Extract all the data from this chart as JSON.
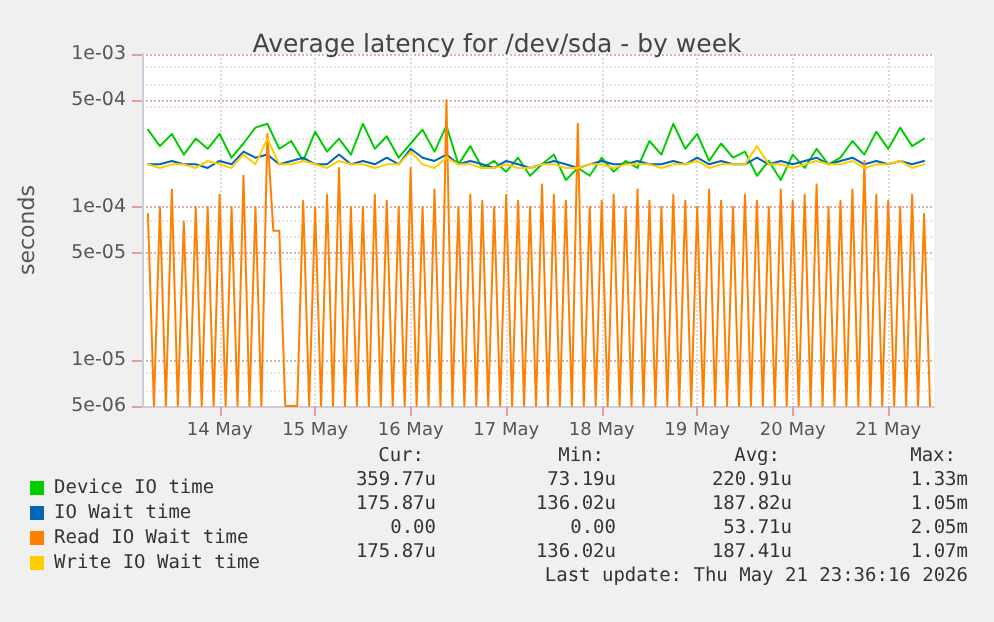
{
  "chart_data": {
    "type": "line",
    "title": "Average latency for /dev/sda - by week",
    "ylabel": "seconds",
    "log": "y",
    "grid": true,
    "legend": "bottom left",
    "marker": "none",
    "line_style": "solid",
    "ylim": [
      5e-06,
      0.001
    ],
    "yticks": [
      {
        "value": 0.001,
        "label": "1e-03"
      },
      {
        "value": 0.0005,
        "label": "5e-04"
      },
      {
        "value": 0.0001,
        "label": "1e-04"
      },
      {
        "value": 5e-05,
        "label": "5e-05"
      },
      {
        "value": 1e-05,
        "label": "1e-05"
      },
      {
        "value": 5e-06,
        "label": "5e-06"
      }
    ],
    "xlim": [
      "2026-05-13T16:30",
      "2026-05-21T23:30"
    ],
    "xticks": [
      {
        "value": "2026-05-14T12:00",
        "label": "14 May"
      },
      {
        "value": "2026-05-15T12:00",
        "label": "15 May"
      },
      {
        "value": "2026-05-16T12:00",
        "label": "16 May"
      },
      {
        "value": "2026-05-17T12:00",
        "label": "17 May"
      },
      {
        "value": "2026-05-18T12:00",
        "label": "18 May"
      },
      {
        "value": "2026-05-19T12:00",
        "label": "19 May"
      },
      {
        "value": "2026-05-20T12:00",
        "label": "20 May"
      },
      {
        "value": "2026-05-21T12:00",
        "label": "21 May"
      }
    ],
    "x": [
      "2026-05-13T18:00",
      "2026-05-13T21:00",
      "2026-05-14T00:00",
      "2026-05-14T03:00",
      "2026-05-14T06:00",
      "2026-05-14T09:00",
      "2026-05-14T12:00",
      "2026-05-14T15:00",
      "2026-05-14T18:00",
      "2026-05-14T21:00",
      "2026-05-15T00:00",
      "2026-05-15T03:00",
      "2026-05-15T06:00",
      "2026-05-15T09:00",
      "2026-05-15T12:00",
      "2026-05-15T15:00",
      "2026-05-15T18:00",
      "2026-05-15T21:00",
      "2026-05-16T00:00",
      "2026-05-16T03:00",
      "2026-05-16T06:00",
      "2026-05-16T09:00",
      "2026-05-16T12:00",
      "2026-05-16T15:00",
      "2026-05-16T18:00",
      "2026-05-16T21:00",
      "2026-05-17T00:00",
      "2026-05-17T03:00",
      "2026-05-17T06:00",
      "2026-05-17T09:00",
      "2026-05-17T12:00",
      "2026-05-17T15:00",
      "2026-05-17T18:00",
      "2026-05-17T21:00",
      "2026-05-18T00:00",
      "2026-05-18T03:00",
      "2026-05-18T06:00",
      "2026-05-18T09:00",
      "2026-05-18T12:00",
      "2026-05-18T15:00",
      "2026-05-18T18:00",
      "2026-05-18T21:00",
      "2026-05-19T00:00",
      "2026-05-19T03:00",
      "2026-05-19T06:00",
      "2026-05-19T09:00",
      "2026-05-19T12:00",
      "2026-05-19T15:00",
      "2026-05-19T18:00",
      "2026-05-19T21:00",
      "2026-05-20T00:00",
      "2026-05-20T03:00",
      "2026-05-20T06:00",
      "2026-05-20T09:00",
      "2026-05-20T12:00",
      "2026-05-20T15:00",
      "2026-05-20T18:00",
      "2026-05-20T21:00",
      "2026-05-21T00:00",
      "2026-05-21T03:00",
      "2026-05-21T06:00",
      "2026-05-21T09:00",
      "2026-05-21T12:00",
      "2026-05-21T15:00",
      "2026-05-21T18:00",
      "2026-05-21T21:00"
    ],
    "series": [
      {
        "name": "Device IO time",
        "color": "#00cc00",
        "values": [
          0.00032,
          0.00025,
          0.0003,
          0.00022,
          0.00028,
          0.00024,
          0.0003,
          0.00021,
          0.00026,
          0.00033,
          0.00035,
          0.00024,
          0.00027,
          0.0002,
          0.00031,
          0.00023,
          0.00028,
          0.00022,
          0.00035,
          0.00024,
          0.00029,
          0.00021,
          0.00026,
          0.00032,
          0.00023,
          0.00034,
          0.00019,
          0.00025,
          0.00018,
          0.0002,
          0.00017,
          0.00021,
          0.00016,
          0.00019,
          0.00022,
          0.00015,
          0.00018,
          0.00016,
          0.00021,
          0.00017,
          0.0002,
          0.00018,
          0.00027,
          0.00022,
          0.00035,
          0.00024,
          0.0003,
          0.0002,
          0.00026,
          0.00021,
          0.00023,
          0.00016,
          0.0002,
          0.00015,
          0.00022,
          0.00018,
          0.00024,
          0.00019,
          0.00021,
          0.00027,
          0.00022,
          0.00031,
          0.00024,
          0.00033,
          0.00025,
          0.00028
        ]
      },
      {
        "name": "IO Wait time",
        "color": "#0066b3",
        "values": [
          0.00019,
          0.00019,
          0.0002,
          0.00019,
          0.00019,
          0.00018,
          0.0002,
          0.00019,
          0.00023,
          0.00021,
          0.00022,
          0.00019,
          0.0002,
          0.00021,
          0.00019,
          0.00019,
          0.00022,
          0.00019,
          0.0002,
          0.00019,
          0.00021,
          0.00019,
          0.00024,
          0.00021,
          0.0002,
          0.00022,
          0.00019,
          0.0002,
          0.00019,
          0.00018,
          0.0002,
          0.00019,
          0.00018,
          0.00019,
          0.0002,
          0.00019,
          0.00018,
          0.00019,
          0.0002,
          0.00019,
          0.00019,
          0.0002,
          0.00019,
          0.00019,
          0.0002,
          0.00019,
          0.00021,
          0.00019,
          0.0002,
          0.00019,
          0.00019,
          0.00021,
          0.00019,
          0.0002,
          0.00019,
          0.0002,
          0.00021,
          0.00019,
          0.0002,
          0.00021,
          0.00019,
          0.0002,
          0.00019,
          0.0002,
          0.00019,
          0.0002
        ]
      },
      {
        "name": "Read IO Wait time",
        "color": "#ff8000",
        "x": [
          "2026-05-13T18:00",
          "2026-05-13T19:30",
          "2026-05-13T21:00",
          "2026-05-13T22:30",
          "2026-05-14T00:00",
          "2026-05-14T01:30",
          "2026-05-14T03:00",
          "2026-05-14T04:30",
          "2026-05-14T06:00",
          "2026-05-14T07:30",
          "2026-05-14T09:00",
          "2026-05-14T10:30",
          "2026-05-14T12:00",
          "2026-05-14T13:30",
          "2026-05-14T15:00",
          "2026-05-14T16:30",
          "2026-05-14T18:00",
          "2026-05-14T19:30",
          "2026-05-14T21:00",
          "2026-05-14T22:30",
          "2026-05-15T00:00",
          "2026-05-15T01:30",
          "2026-05-15T03:00",
          "2026-05-15T04:30",
          "2026-05-15T06:00",
          "2026-05-15T07:30",
          "2026-05-15T09:00",
          "2026-05-15T10:30",
          "2026-05-15T12:00",
          "2026-05-15T13:30",
          "2026-05-15T15:00",
          "2026-05-15T16:30",
          "2026-05-15T18:00",
          "2026-05-15T19:30",
          "2026-05-15T21:00",
          "2026-05-15T22:30",
          "2026-05-16T00:00",
          "2026-05-16T01:30",
          "2026-05-16T03:00",
          "2026-05-16T04:30",
          "2026-05-16T06:00",
          "2026-05-16T07:30",
          "2026-05-16T09:00",
          "2026-05-16T10:30",
          "2026-05-16T12:00",
          "2026-05-16T13:30",
          "2026-05-16T15:00",
          "2026-05-16T16:30",
          "2026-05-16T18:00",
          "2026-05-16T19:30",
          "2026-05-16T21:00",
          "2026-05-16T22:30",
          "2026-05-17T00:00",
          "2026-05-17T01:30",
          "2026-05-17T03:00",
          "2026-05-17T04:30",
          "2026-05-17T06:00",
          "2026-05-17T07:30",
          "2026-05-17T09:00",
          "2026-05-17T10:30",
          "2026-05-17T12:00",
          "2026-05-17T13:30",
          "2026-05-17T15:00",
          "2026-05-17T16:30",
          "2026-05-17T18:00",
          "2026-05-17T19:30",
          "2026-05-17T21:00",
          "2026-05-17T22:30",
          "2026-05-18T00:00",
          "2026-05-18T01:30",
          "2026-05-18T03:00",
          "2026-05-18T04:30",
          "2026-05-18T06:00",
          "2026-05-18T07:30",
          "2026-05-18T09:00",
          "2026-05-18T10:30",
          "2026-05-18T12:00",
          "2026-05-18T13:30",
          "2026-05-18T15:00",
          "2026-05-18T16:30",
          "2026-05-18T18:00",
          "2026-05-18T19:30",
          "2026-05-18T21:00",
          "2026-05-18T22:30",
          "2026-05-19T00:00",
          "2026-05-19T01:30",
          "2026-05-19T03:00",
          "2026-05-19T04:30",
          "2026-05-19T06:00",
          "2026-05-19T07:30",
          "2026-05-19T09:00",
          "2026-05-19T10:30",
          "2026-05-19T12:00",
          "2026-05-19T13:30",
          "2026-05-19T15:00",
          "2026-05-19T16:30",
          "2026-05-19T18:00",
          "2026-05-19T19:30",
          "2026-05-19T21:00",
          "2026-05-19T22:30",
          "2026-05-20T00:00",
          "2026-05-20T01:30",
          "2026-05-20T03:00",
          "2026-05-20T04:30",
          "2026-05-20T06:00",
          "2026-05-20T07:30",
          "2026-05-20T09:00",
          "2026-05-20T10:30",
          "2026-05-20T12:00",
          "2026-05-20T13:30",
          "2026-05-20T15:00",
          "2026-05-20T16:30",
          "2026-05-20T18:00",
          "2026-05-20T19:30",
          "2026-05-20T21:00",
          "2026-05-20T22:30",
          "2026-05-21T00:00",
          "2026-05-21T01:30",
          "2026-05-21T03:00",
          "2026-05-21T04:30",
          "2026-05-21T06:00",
          "2026-05-21T07:30",
          "2026-05-21T09:00",
          "2026-05-21T10:30",
          "2026-05-21T12:00",
          "2026-05-21T13:30",
          "2026-05-21T15:00",
          "2026-05-21T16:30",
          "2026-05-21T18:00",
          "2026-05-21T19:30",
          "2026-05-21T21:00",
          "2026-05-21T22:30"
        ],
        "values": [
          9e-05,
          5e-06,
          0.0001,
          5e-06,
          0.00013,
          5e-06,
          8e-05,
          5e-06,
          0.0001,
          5e-06,
          0.0001,
          5e-06,
          0.00012,
          5e-06,
          0.0001,
          5e-06,
          0.00016,
          5e-06,
          0.0001,
          5e-06,
          0.0003,
          7e-05,
          7e-05,
          5e-06,
          5e-06,
          5e-06,
          0.00011,
          5e-06,
          0.0001,
          5e-06,
          0.00012,
          5e-06,
          0.00018,
          5e-06,
          0.0001,
          5e-06,
          0.0001,
          5e-06,
          0.00012,
          5e-06,
          0.00011,
          5e-06,
          0.0001,
          5e-06,
          0.00018,
          5e-06,
          0.0001,
          5e-06,
          0.00013,
          5e-06,
          0.0005,
          5e-06,
          0.0001,
          5e-06,
          0.00012,
          5e-06,
          0.00011,
          5e-06,
          0.0001,
          5e-06,
          0.00012,
          5e-06,
          0.00011,
          5e-06,
          0.0001,
          5e-06,
          0.00014,
          5e-06,
          0.00012,
          5e-06,
          0.00011,
          5e-06,
          0.00035,
          5e-06,
          0.0001,
          5e-06,
          0.00011,
          5e-06,
          0.00012,
          5e-06,
          0.0001,
          5e-06,
          0.00013,
          5e-06,
          0.00011,
          5e-06,
          0.0001,
          5e-06,
          0.00012,
          5e-06,
          0.00011,
          5e-06,
          0.0001,
          5e-06,
          0.00013,
          5e-06,
          0.00011,
          5e-06,
          0.0001,
          5e-06,
          0.00012,
          5e-06,
          0.00011,
          5e-06,
          0.0001,
          5e-06,
          0.00013,
          5e-06,
          0.00011,
          5e-06,
          0.00012,
          5e-06,
          0.00014,
          5e-06,
          0.0001,
          5e-06,
          0.00011,
          5e-06,
          0.00013,
          5e-06,
          0.0002,
          5e-06,
          0.00012,
          5e-06,
          0.00011,
          5e-06,
          0.0001,
          5e-06,
          0.00012,
          5e-06,
          9e-05,
          5e-06
        ]
      },
      {
        "name": "Write IO Wait time",
        "color": "#ffcc00",
        "values": [
          0.00019,
          0.00018,
          0.00019,
          0.00019,
          0.00018,
          0.0002,
          0.00019,
          0.00018,
          0.00022,
          0.00019,
          0.00028,
          0.00019,
          0.00019,
          0.0002,
          0.00019,
          0.00018,
          0.0002,
          0.00019,
          0.00019,
          0.00018,
          0.00019,
          0.00019,
          0.00023,
          0.00019,
          0.00018,
          0.00021,
          0.00019,
          0.00019,
          0.00018,
          0.00018,
          0.00019,
          0.00018,
          0.00018,
          0.00019,
          0.00019,
          0.00018,
          0.00018,
          0.00019,
          0.00019,
          0.00018,
          0.00019,
          0.00019,
          0.00019,
          0.00018,
          0.00019,
          0.00019,
          0.0002,
          0.00018,
          0.00019,
          0.00019,
          0.00019,
          0.00025,
          0.00019,
          0.00019,
          0.00018,
          0.00019,
          0.0002,
          0.00019,
          0.00019,
          0.0002,
          0.00018,
          0.00019,
          0.00019,
          0.0002,
          0.00018,
          0.00019
        ]
      }
    ],
    "annotations": [
      "Cur:",
      "Min:",
      "Avg:",
      "Max:",
      "359.77u",
      "73.19u",
      "220.91u",
      "1.33m",
      "175.87u",
      "136.02u",
      "187.82u",
      "1.05m",
      "0.00",
      "0.00",
      "53.71u",
      "2.05m",
      "175.87u",
      "136.02u",
      "187.41u",
      "1.07m",
      "Last update: Thu May 21 23:36:16 2026"
    ]
  }
}
